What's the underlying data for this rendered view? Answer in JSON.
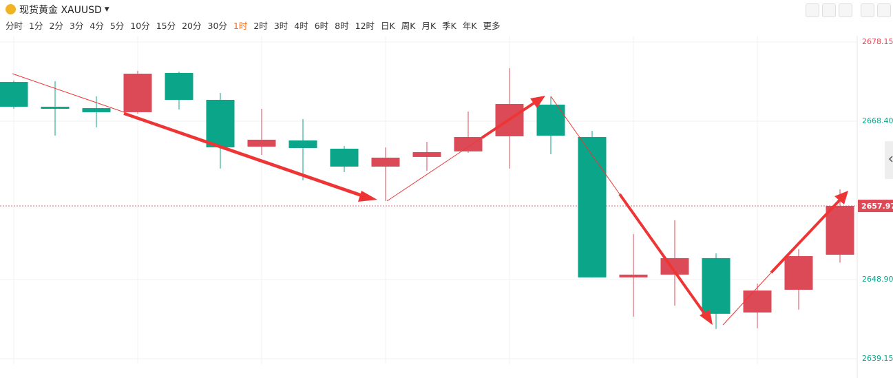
{
  "header": {
    "symbol": "现货黄金 XAUUSD"
  },
  "intervals": [
    "分时",
    "1分",
    "2分",
    "3分",
    "4分",
    "5分",
    "10分",
    "15分",
    "20分",
    "30分",
    "1时",
    "2时",
    "3时",
    "4时",
    "6时",
    "8时",
    "12时",
    "日K",
    "周K",
    "月K",
    "季K",
    "年K",
    "更多"
  ],
  "active_interval": "1时",
  "chart_data": {
    "type": "candlestick",
    "open": [
      2673.23,
      2670.18,
      2670.01,
      2669.51,
      2674.34,
      2671.03,
      2665.27,
      2666.03,
      2665.01,
      2662.81,
      2664.0,
      2664.68,
      2666.54,
      2670.44,
      2666.45,
      2649.17,
      2649.51,
      2651.54,
      2644.85,
      2647.64,
      2651.96
    ],
    "high": [
      2673.4,
      2673.32,
      2671.46,
      2674.59,
      2674.51,
      2671.88,
      2669.93,
      2668.66,
      2665.35,
      2665.18,
      2665.86,
      2669.59,
      2674.93,
      2671.46,
      2667.22,
      2654.51,
      2656.2,
      2652.13,
      2648.4,
      2652.64,
      2660.01
    ],
    "low": [
      2669.93,
      2666.62,
      2667.64,
      2669.34,
      2669.84,
      2662.56,
      2664.25,
      2661.12,
      2662.13,
      2658.57,
      2662.3,
      2664.51,
      2662.56,
      2664.34,
      2649.17,
      2644.34,
      2645.69,
      2642.81,
      2642.9,
      2645.18,
      2650.99
    ],
    "close": [
      2670.18,
      2670.01,
      2669.51,
      2674.25,
      2671.03,
      2665.18,
      2666.12,
      2665.1,
      2662.81,
      2663.91,
      2664.59,
      2666.45,
      2670.52,
      2666.62,
      2649.17,
      2649.51,
      2651.54,
      2644.68,
      2647.56,
      2651.79,
      2657.97
    ],
    "up_color": "#dc4a57",
    "down_color": "#0ba58a",
    "ylim": [
      2638.56,
      2678.83
    ],
    "yticks": [
      2639.15,
      {
        "value": 2648.9,
        "label": "2648.90"
      },
      {
        "value": 2668.4,
        "label": "2668.40"
      },
      2678.15
    ],
    "grid": true
  }
}
